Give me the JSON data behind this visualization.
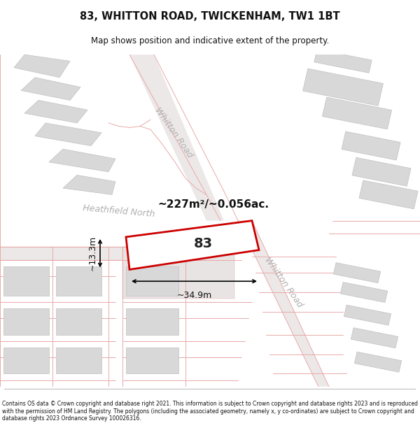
{
  "title": "83, WHITTON ROAD, TWICKENHAM, TW1 1BT",
  "subtitle": "Map shows position and indicative extent of the property.",
  "footer": "Contains OS data © Crown copyright and database right 2021. This information is subject to Crown copyright and database rights 2023 and is reproduced with the permission of HM Land Registry. The polygons (including the associated geometry, namely x, y co-ordinates) are subject to Crown copyright and database rights 2023 Ordnance Survey 100026316.",
  "title_color": "#111111",
  "footer_color": "#111111",
  "map_bg": "#f7f4f4",
  "road_color": "#e8aaaa",
  "block_color": "#d8d8d8",
  "block_edge": "#c0c0c0",
  "highlight_color": "#cc0000",
  "highlight_fill": "#ffffff",
  "area_label": "~227m²/~0.056ac.",
  "property_label": "83",
  "dim_width": "~34.9m",
  "dim_height": "~13.3m",
  "road_label_upper": "Whitton Road",
  "road_label_lower": "Whitton Road",
  "road_label_heathfield": "Heathfield North",
  "figsize": [
    6.0,
    6.25
  ],
  "dpi": 100
}
